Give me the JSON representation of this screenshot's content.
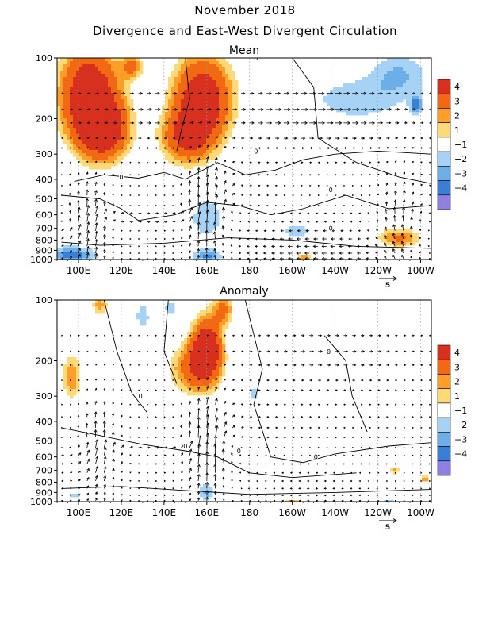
{
  "figure": {
    "title": "November 2018",
    "subtitle": "Divergence and East-West Divergent Circulation"
  },
  "colors": {
    "pos4": "#d7301f",
    "pos3": "#f16913",
    "pos2": "#fd9f26",
    "pos1": "#fed976",
    "neg1": "#a6d2f5",
    "neg2": "#6baee8",
    "neg3": "#3a7fd5",
    "neg4": "#8f7fe0",
    "contour": "#000000",
    "grid": "#999999"
  },
  "chart_data": [
    {
      "type": "heatmap",
      "title": "Mean",
      "x_ticks": [
        "100E",
        "120E",
        "140E",
        "160E",
        "180",
        "160W",
        "140W",
        "120W",
        "100W"
      ],
      "x_tick_lon": [
        100,
        120,
        140,
        160,
        180,
        200,
        220,
        240,
        260
      ],
      "xlim_lon": [
        90,
        265
      ],
      "y_ticks": [
        "100",
        "200",
        "300",
        "400",
        "500",
        "600",
        "700",
        "800",
        "900",
        "1000"
      ],
      "y_tick_hpa": [
        100,
        200,
        300,
        400,
        500,
        600,
        700,
        800,
        900,
        1000
      ],
      "ylim_hpa": [
        100,
        1000
      ],
      "y_scale": "log",
      "colorbar_levels": [
        "4",
        "3",
        "2",
        "1",
        "−1",
        "−2",
        "−3",
        "−4"
      ],
      "contour_label": "0",
      "vector_scale_label": "5",
      "blobs": [
        {
          "lon": 105,
          "p": 150,
          "rlon": 14,
          "rp": 0.55,
          "v": 4.3
        },
        {
          "lon": 112,
          "p": 230,
          "rlon": 12,
          "rp": 0.35,
          "v": 3.5
        },
        {
          "lon": 158,
          "p": 160,
          "rlon": 14,
          "rp": 0.5,
          "v": 4.2
        },
        {
          "lon": 150,
          "p": 250,
          "rlon": 12,
          "rp": 0.3,
          "v": 2.6
        },
        {
          "lon": 125,
          "p": 110,
          "rlon": 5,
          "rp": 0.15,
          "v": 2.0
        },
        {
          "lon": 230,
          "p": 160,
          "rlon": 22,
          "rp": 0.25,
          "v": -1.6
        },
        {
          "lon": 250,
          "p": 120,
          "rlon": 14,
          "rp": 0.25,
          "v": -1.7
        },
        {
          "lon": 258,
          "p": 170,
          "rlon": 3,
          "rp": 0.12,
          "v": -2.2
        },
        {
          "lon": 160,
          "p": 620,
          "rlon": 8,
          "rp": 0.25,
          "v": -1.7
        },
        {
          "lon": 202,
          "p": 720,
          "rlon": 9,
          "rp": 0.08,
          "v": -1.5
        },
        {
          "lon": 97,
          "p": 950,
          "rlon": 12,
          "rp": 0.1,
          "v": -2.6
        },
        {
          "lon": 160,
          "p": 960,
          "rlon": 7,
          "rp": 0.08,
          "v": -2.4
        },
        {
          "lon": 250,
          "p": 780,
          "rlon": 11,
          "rp": 0.12,
          "v": 2.2
        },
        {
          "lon": 205,
          "p": 980,
          "rlon": 4,
          "rp": 0.04,
          "v": 2.0
        }
      ],
      "vectors": {
        "levels_hpa": [
          150,
          180,
          210,
          250,
          280,
          330,
          380,
          430,
          480,
          540,
          590,
          650,
          720,
          790,
          860,
          930,
          990
        ],
        "lon_step": 4,
        "cells": [
          {
            "lon": 105,
            "p": 700,
            "str": 1.6,
            "dir": 1
          },
          {
            "lon": 160,
            "p": 550,
            "str": 2.4,
            "dir": 1
          },
          {
            "lon": 250,
            "p": 650,
            "str": 1.2,
            "dir": 1
          }
        ],
        "zonal": [
          {
            "lon": 132,
            "p": 180,
            "u": 0.9
          },
          {
            "lon": 215,
            "p": 180,
            "u": 1.6
          },
          {
            "lon": 215,
            "p": 900,
            "u": -1.4
          }
        ]
      }
    },
    {
      "type": "heatmap",
      "title": "Anomaly",
      "x_ticks": [
        "100E",
        "120E",
        "140E",
        "160E",
        "180",
        "160W",
        "140W",
        "120W",
        "100W"
      ],
      "x_tick_lon": [
        100,
        120,
        140,
        160,
        180,
        200,
        220,
        240,
        260
      ],
      "xlim_lon": [
        90,
        265
      ],
      "y_ticks": [
        "100",
        "200",
        "300",
        "400",
        "500",
        "600",
        "700",
        "800",
        "900",
        "1000"
      ],
      "y_tick_hpa": [
        100,
        200,
        300,
        400,
        500,
        600,
        700,
        800,
        900,
        1000
      ],
      "ylim_hpa": [
        100,
        1000
      ],
      "y_scale": "log",
      "colorbar_levels": [
        "4",
        "3",
        "2",
        "1",
        "−1",
        "−2",
        "−3",
        "−4"
      ],
      "contour_label": "0",
      "vector_scale_label": "5",
      "blobs": [
        {
          "lon": 160,
          "p": 170,
          "rlon": 7,
          "rp": 0.35,
          "v": 4.2
        },
        {
          "lon": 154,
          "p": 220,
          "rlon": 12,
          "rp": 0.3,
          "v": 2.4
        },
        {
          "lon": 97,
          "p": 240,
          "rlon": 5,
          "rp": 0.3,
          "v": 1.9
        },
        {
          "lon": 168,
          "p": 110,
          "rlon": 5,
          "rp": 0.2,
          "v": 2.0
        },
        {
          "lon": 110,
          "p": 105,
          "rlon": 4,
          "rp": 0.12,
          "v": 1.8
        },
        {
          "lon": 130,
          "p": 120,
          "rlon": 3,
          "rp": 0.15,
          "v": -1.8
        },
        {
          "lon": 143,
          "p": 110,
          "rlon": 3,
          "rp": 0.1,
          "v": -1.6
        },
        {
          "lon": 182,
          "p": 290,
          "rlon": 3,
          "rp": 0.07,
          "v": -1.7
        },
        {
          "lon": 160,
          "p": 900,
          "rlon": 4,
          "rp": 0.1,
          "v": -2.0
        },
        {
          "lon": 98,
          "p": 930,
          "rlon": 3,
          "rp": 0.05,
          "v": -1.6
        },
        {
          "lon": 248,
          "p": 700,
          "rlon": 2,
          "rp": 0.05,
          "v": 2.0
        },
        {
          "lon": 262,
          "p": 770,
          "rlon": 2,
          "rp": 0.05,
          "v": 2.0
        },
        {
          "lon": 200,
          "p": 990,
          "rlon": 4,
          "rp": 0.03,
          "v": 1.8
        },
        {
          "lon": 245,
          "p": 985,
          "rlon": 6,
          "rp": 0.03,
          "v": -1.5
        }
      ],
      "vectors": {
        "levels_hpa": [
          150,
          180,
          210,
          250,
          280,
          330,
          380,
          430,
          480,
          540,
          590,
          650,
          720,
          790,
          860,
          930,
          990
        ],
        "lon_step": 4,
        "cells": [
          {
            "lon": 110,
            "p": 550,
            "str": 1.5,
            "dir": 1
          },
          {
            "lon": 160,
            "p": 520,
            "str": 2.6,
            "dir": 1
          }
        ],
        "zonal": [
          {
            "lon": 215,
            "p": 180,
            "u": 0.8
          },
          {
            "lon": 215,
            "p": 900,
            "u": -0.7
          }
        ]
      }
    }
  ]
}
